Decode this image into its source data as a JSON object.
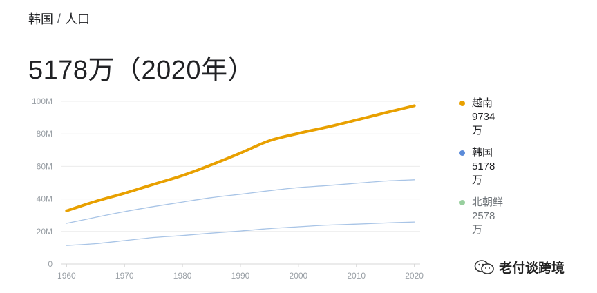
{
  "breadcrumb": {
    "parent": "韩国",
    "separator": "/",
    "current": "人口"
  },
  "headline": "5178万（2020年）",
  "legend": [
    {
      "name": "越南",
      "value": "9734",
      "unit": "万",
      "color": "#e8a000",
      "dim": false
    },
    {
      "name": "韩国",
      "value": "5178",
      "unit": "万",
      "color": "#5b8bd9",
      "dim": false
    },
    {
      "name": "北朝鲜",
      "value": "2578",
      "unit": "万",
      "color": "#98cf9e",
      "dim": true
    }
  ],
  "watermark": {
    "text": "老付谈跨境",
    "icon": "wechat-icon"
  },
  "chart_data": {
    "type": "line",
    "ylim": [
      0,
      100
    ],
    "xlim": [
      1959,
      2021
    ],
    "y_ticks": [
      0,
      20,
      40,
      60,
      80,
      100
    ],
    "y_tick_labels": [
      "0",
      "20M",
      "40M",
      "60M",
      "80M",
      "100M"
    ],
    "x_ticks": [
      1960,
      1970,
      1980,
      1990,
      2000,
      2010,
      2020
    ],
    "x_tick_labels": [
      "1960",
      "1970",
      "1980",
      "1990",
      "2000",
      "2010",
      "2020"
    ],
    "grid": true,
    "legend_position": "right",
    "series": [
      {
        "name": "越南",
        "color": "#e8a000",
        "x": [
          1960,
          1965,
          1970,
          1975,
          1980,
          1985,
          1990,
          1995,
          2000,
          2005,
          2010,
          2015,
          2020
        ],
        "values": [
          32.7,
          38.5,
          43.5,
          49.0,
          54.4,
          61.0,
          68.2,
          75.8,
          80.3,
          84.2,
          88.5,
          93.0,
          97.3
        ]
      },
      {
        "name": "韩国",
        "color": "#a8c4e6",
        "x": [
          1960,
          1965,
          1970,
          1975,
          1980,
          1985,
          1990,
          1995,
          2000,
          2005,
          2010,
          2015,
          2020
        ],
        "values": [
          25.0,
          28.7,
          32.2,
          35.3,
          38.1,
          40.8,
          42.9,
          45.1,
          47.0,
          48.2,
          49.6,
          51.0,
          51.8
        ]
      },
      {
        "name": "北朝鲜",
        "color": "#a8c4e6",
        "x": [
          1960,
          1965,
          1970,
          1975,
          1980,
          1985,
          1990,
          1995,
          2000,
          2005,
          2010,
          2015,
          2020
        ],
        "values": [
          11.4,
          12.5,
          14.4,
          16.3,
          17.5,
          19.0,
          20.3,
          21.8,
          22.9,
          23.9,
          24.5,
          25.2,
          25.8
        ]
      }
    ]
  }
}
